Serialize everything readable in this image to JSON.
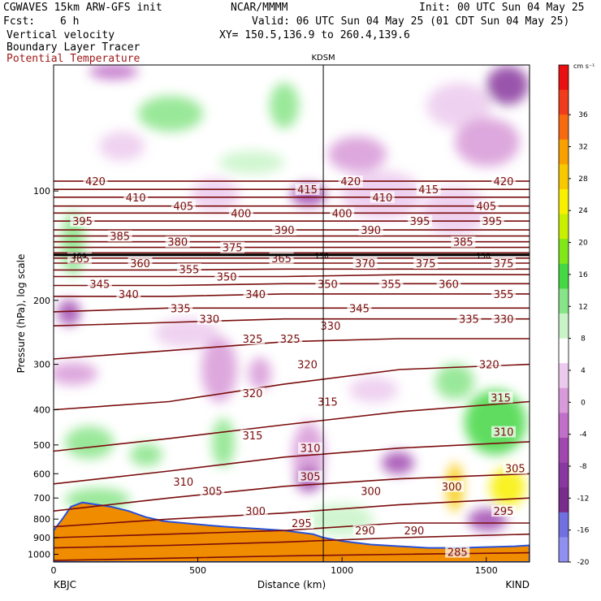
{
  "header": {
    "model": "CGWAVES 15km ARW-GFS init",
    "org": "NCAR/MMMM",
    "init": "Init: 00 UTC Sun 04 May 25",
    "fcst_label": "Fcst:",
    "fcst_value": "6 h",
    "valid": "Valid: 06 UTC Sun 04 May 25 (01 CDT Sun 04 May 25)",
    "field1": "Vertical velocity",
    "field2": "Boundary Layer Tracer",
    "field3": "Potential Temperature",
    "xy": "XY= 150.5,136.9 to 260.4,139.6"
  },
  "colors": {
    "theta_contour": "#7a0c0c",
    "terrain": "#f08c00",
    "axis": "#000000"
  },
  "chart_data": {
    "type": "heatmap",
    "title": "",
    "xlabel": "Distance (km)",
    "ylabel": "Pressure (hPa), log scale",
    "xlim": [
      0,
      1650
    ],
    "ylim": [
      1050,
      45
    ],
    "y_scale": "log",
    "x_ticks": [
      0,
      500,
      1000,
      1500
    ],
    "y_ticks": [
      100,
      200,
      300,
      400,
      500,
      600,
      700,
      800,
      900,
      1000
    ],
    "marker_label": "KDSM",
    "marker_x": 935,
    "left_station": "KBJC",
    "right_station": "KIND",
    "colorbar": {
      "units": "cm s⁻¹",
      "ticks": [
        36,
        32,
        28,
        24,
        20,
        16,
        12,
        8,
        4,
        0,
        -4,
        -8,
        -12,
        -16,
        -20
      ],
      "colors": [
        "#e81010",
        "#f03c1c",
        "#f86a10",
        "#f8a000",
        "#f8c800",
        "#f8f000",
        "#c8f000",
        "#80e818",
        "#44d844",
        "#88e488",
        "#c8f4c8",
        "#ffffff",
        "#eccaee",
        "#d89ad8",
        "#c070c8",
        "#a048b0",
        "#88389e",
        "#7a2c8c",
        "#7070e0",
        "#9090f0"
      ]
    },
    "theta_contours": [
      {
        "value": 285,
        "p": [
          1040,
          1025,
          1010,
          1000,
          990
        ]
      },
      {
        "value": 290,
        "p": [
          960,
          945,
          925,
          900,
          880
        ]
      },
      {
        "value": 295,
        "p": [
          900,
          880,
          860,
          820,
          820
        ]
      },
      {
        "value": 300,
        "p": [
          840,
          800,
          770,
          730,
          700
        ]
      },
      {
        "value": 305,
        "p": [
          760,
          700,
          650,
          620,
          600
        ]
      },
      {
        "value": 310,
        "p": [
          640,
          590,
          540,
          510,
          490
        ]
      },
      {
        "value": 315,
        "p": [
          520,
          480,
          440,
          405,
          380
        ]
      },
      {
        "value": 320,
        "p": [
          400,
          380,
          340,
          310,
          300
        ]
      },
      {
        "value": 325,
        "p": [
          290,
          275,
          260,
          255,
          255
        ]
      },
      {
        "value": 330,
        "p": [
          235,
          230,
          225,
          225,
          225
        ]
      },
      {
        "value": 335,
        "p": [
          215,
          210,
          210,
          210,
          210
        ]
      },
      {
        "value": 340,
        "p": [
          195,
          195,
          192,
          192,
          192
        ]
      },
      {
        "value": 345,
        "p": [
          182,
          182,
          180,
          180,
          180
        ]
      },
      {
        "value": 350,
        "p": [
          172,
          172,
          172,
          170,
          170
        ]
      },
      {
        "value": 355,
        "p": [
          165,
          165,
          164,
          164,
          164
        ]
      },
      {
        "value": 360,
        "p": [
          158,
          158,
          158,
          158,
          158
        ]
      },
      {
        "value": 365,
        "p": [
          153,
          153,
          153,
          153,
          153
        ]
      },
      {
        "value": 370,
        "p": [
          148,
          148,
          148,
          148,
          148
        ]
      },
      {
        "value": 375,
        "p": [
          143,
          143,
          143,
          143,
          143
        ]
      },
      {
        "value": 380,
        "p": [
          138,
          138,
          138,
          138,
          138
        ]
      },
      {
        "value": 385,
        "p": [
          133,
          133,
          133,
          133,
          133
        ]
      },
      {
        "value": 390,
        "p": [
          128,
          128,
          128,
          128,
          128
        ]
      },
      {
        "value": 395,
        "p": [
          121,
          121,
          121,
          121,
          121
        ]
      },
      {
        "value": 400,
        "p": [
          115,
          115,
          115,
          115,
          115
        ]
      },
      {
        "value": 405,
        "p": [
          110,
          110,
          110,
          110,
          110
        ]
      },
      {
        "value": 410,
        "p": [
          104,
          104,
          104,
          104,
          104
        ]
      },
      {
        "value": 415,
        "p": [
          99,
          99,
          99,
          99,
          99
        ]
      },
      {
        "value": 420,
        "p": [
          94,
          94,
          94,
          94,
          94
        ]
      }
    ],
    "theta_x": [
      0,
      400,
      800,
      1200,
      1650
    ],
    "tropopause_label": "150",
    "tropopause_p": 150,
    "tropopause_label_x": [
      90,
      930,
      1490
    ],
    "theta_labels": [
      {
        "v": "420",
        "x": 145,
        "p": 94
      },
      {
        "v": "410",
        "x": 285,
        "p": 104
      },
      {
        "v": "405",
        "x": 450,
        "p": 110
      },
      {
        "v": "395",
        "x": 100,
        "p": 121
      },
      {
        "v": "385",
        "x": 230,
        "p": 133
      },
      {
        "v": "380",
        "x": 430,
        "p": 138
      },
      {
        "v": "375",
        "x": 620,
        "p": 143
      },
      {
        "v": "400",
        "x": 650,
        "p": 115
      },
      {
        "v": "390",
        "x": 800,
        "p": 128
      },
      {
        "v": "415",
        "x": 880,
        "p": 99
      },
      {
        "v": "420",
        "x": 1030,
        "p": 94
      },
      {
        "v": "400",
        "x": 1000,
        "p": 115
      },
      {
        "v": "410",
        "x": 1140,
        "p": 104
      },
      {
        "v": "390",
        "x": 1100,
        "p": 128
      },
      {
        "v": "415",
        "x": 1300,
        "p": 99
      },
      {
        "v": "395",
        "x": 1270,
        "p": 121
      },
      {
        "v": "385",
        "x": 1420,
        "p": 138
      },
      {
        "v": "405",
        "x": 1500,
        "p": 110
      },
      {
        "v": "420",
        "x": 1560,
        "p": 94
      },
      {
        "v": "395",
        "x": 1520,
        "p": 121
      },
      {
        "v": "365",
        "x": 90,
        "p": 153
      },
      {
        "v": "360",
        "x": 300,
        "p": 158
      },
      {
        "v": "355",
        "x": 470,
        "p": 164
      },
      {
        "v": "365",
        "x": 790,
        "p": 153
      },
      {
        "v": "370",
        "x": 1080,
        "p": 158
      },
      {
        "v": "375",
        "x": 1290,
        "p": 158
      },
      {
        "v": "375",
        "x": 1560,
        "p": 158
      },
      {
        "v": "350",
        "x": 600,
        "p": 172
      },
      {
        "v": "345",
        "x": 160,
        "p": 180
      },
      {
        "v": "340",
        "x": 260,
        "p": 192
      },
      {
        "v": "340",
        "x": 700,
        "p": 192
      },
      {
        "v": "350",
        "x": 950,
        "p": 180
      },
      {
        "v": "355",
        "x": 1170,
        "p": 180
      },
      {
        "v": "360",
        "x": 1370,
        "p": 180
      },
      {
        "v": "355",
        "x": 1560,
        "p": 192
      },
      {
        "v": "335",
        "x": 440,
        "p": 210
      },
      {
        "v": "330",
        "x": 540,
        "p": 225
      },
      {
        "v": "345",
        "x": 1060,
        "p": 210
      },
      {
        "v": "335",
        "x": 1440,
        "p": 225
      },
      {
        "v": "330",
        "x": 1560,
        "p": 225
      },
      {
        "v": "330",
        "x": 960,
        "p": 235
      },
      {
        "v": "325",
        "x": 690,
        "p": 255
      },
      {
        "v": "325",
        "x": 820,
        "p": 255
      },
      {
        "v": "320",
        "x": 880,
        "p": 300
      },
      {
        "v": "320",
        "x": 1510,
        "p": 300
      },
      {
        "v": "320",
        "x": 690,
        "p": 360
      },
      {
        "v": "315",
        "x": 950,
        "p": 380
      },
      {
        "v": "315",
        "x": 1550,
        "p": 370
      },
      {
        "v": "315",
        "x": 690,
        "p": 470
      },
      {
        "v": "310",
        "x": 890,
        "p": 510
      },
      {
        "v": "310",
        "x": 1560,
        "p": 460
      },
      {
        "v": "310",
        "x": 450,
        "p": 630
      },
      {
        "v": "305",
        "x": 550,
        "p": 670
      },
      {
        "v": "305",
        "x": 890,
        "p": 610
      },
      {
        "v": "305",
        "x": 1600,
        "p": 580
      },
      {
        "v": "300",
        "x": 700,
        "p": 760
      },
      {
        "v": "300",
        "x": 1100,
        "p": 670
      },
      {
        "v": "300",
        "x": 1380,
        "p": 650
      },
      {
        "v": "295",
        "x": 860,
        "p": 820
      },
      {
        "v": "295",
        "x": 1560,
        "p": 760
      },
      {
        "v": "290",
        "x": 1080,
        "p": 860
      },
      {
        "v": "290",
        "x": 1250,
        "p": 860
      },
      {
        "v": "285",
        "x": 1400,
        "p": 985
      }
    ],
    "terrain_p": [
      [
        0,
        860
      ],
      [
        30,
        800
      ],
      [
        60,
        740
      ],
      [
        100,
        720
      ],
      [
        150,
        730
      ],
      [
        200,
        740
      ],
      [
        260,
        760
      ],
      [
        320,
        790
      ],
      [
        380,
        810
      ],
      [
        450,
        820
      ],
      [
        520,
        830
      ],
      [
        600,
        840
      ],
      [
        700,
        850
      ],
      [
        800,
        860
      ],
      [
        900,
        880
      ],
      [
        935,
        900
      ],
      [
        1000,
        920
      ],
      [
        1100,
        940
      ],
      [
        1200,
        950
      ],
      [
        1300,
        960
      ],
      [
        1400,
        960
      ],
      [
        1500,
        955
      ],
      [
        1600,
        950
      ],
      [
        1650,
        945
      ]
    ]
  }
}
